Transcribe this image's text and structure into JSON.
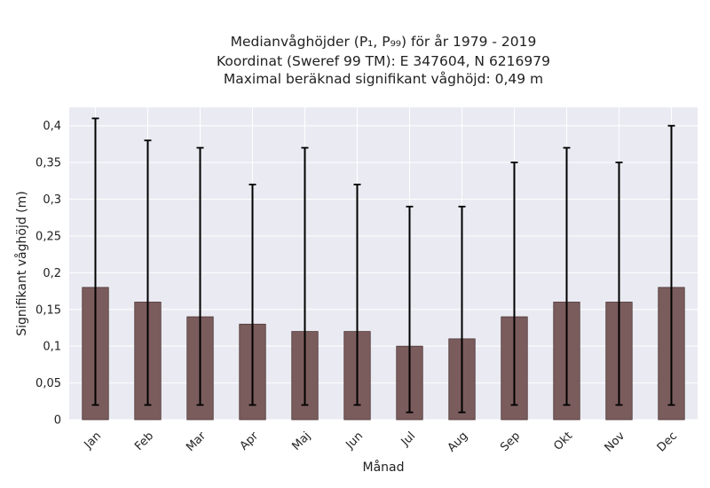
{
  "chart_data": {
    "type": "bar",
    "title_lines": [
      "Medianvåghöjder (P₁, P₉₉) för år 1979 - 2019",
      "Koordinat (Sweref 99 TM): E 347604, N 6216979",
      "Maximal beräknad signifikant våghöjd: 0,49 m"
    ],
    "xlabel": "Månad",
    "ylabel": "Signifikant våghöjd (m)",
    "categories": [
      "Jan",
      "Feb",
      "Mar",
      "Apr",
      "Maj",
      "Jun",
      "Jul",
      "Aug",
      "Sep",
      "Okt",
      "Nov",
      "Dec"
    ],
    "values": [
      0.18,
      0.16,
      0.14,
      0.13,
      0.12,
      0.12,
      0.1,
      0.11,
      0.14,
      0.16,
      0.16,
      0.18
    ],
    "lower": [
      0.02,
      0.02,
      0.02,
      0.02,
      0.02,
      0.02,
      0.01,
      0.01,
      0.02,
      0.02,
      0.02,
      0.02
    ],
    "upper": [
      0.41,
      0.38,
      0.37,
      0.32,
      0.37,
      0.32,
      0.29,
      0.29,
      0.35,
      0.37,
      0.35,
      0.4
    ],
    "ylim": [
      0,
      0.425
    ],
    "yticks": [
      0,
      0.05,
      0.1,
      0.15,
      0.2,
      0.25,
      0.3,
      0.35,
      0.4
    ],
    "ytick_labels": [
      "0",
      "0,05",
      "0,1",
      "0,15",
      "0,2",
      "0,25",
      "0,3",
      "0,35",
      "0,4"
    ],
    "grid": true,
    "colors": {
      "bar": "#7b5c5c",
      "plot_background": "#eaeaf2",
      "error_bar": "#000000"
    }
  }
}
